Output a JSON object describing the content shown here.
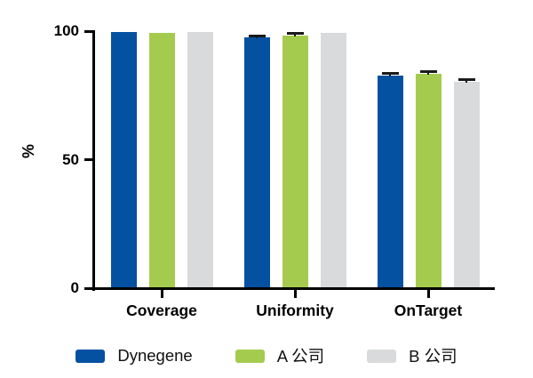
{
  "chart_data": {
    "type": "bar",
    "title": "",
    "xlabel": "",
    "ylabel": "%",
    "ylim": [
      0,
      100
    ],
    "yticks": [
      0,
      50,
      100
    ],
    "grid": false,
    "legend_position": "bottom",
    "categories": [
      "Coverage",
      "Uniformity",
      "OnTarget"
    ],
    "series": [
      {
        "name": "Dynegene",
        "color": "#0551A1",
        "values": [
          99.8,
          97.6,
          82.8
        ],
        "errors_upper": [
          0,
          0.6,
          0.7
        ]
      },
      {
        "name": "A 公司",
        "color": "#A5CB4E",
        "values": [
          99.2,
          98.1,
          83.4
        ],
        "errors_upper": [
          0,
          0.9,
          0.8
        ]
      },
      {
        "name": "B 公司",
        "color": "#D8DADB",
        "values": [
          99.6,
          99.3,
          80.2
        ],
        "errors_upper": [
          0,
          0,
          0.8
        ]
      }
    ],
    "error_color": "#1A1A1A",
    "axis_color": "#000000",
    "background": "#FFFFFF"
  }
}
